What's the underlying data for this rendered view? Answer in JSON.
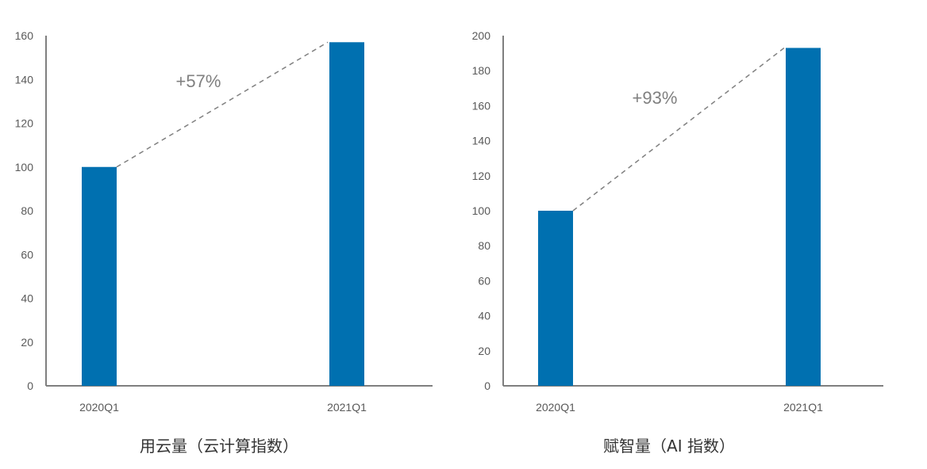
{
  "colors": {
    "bar": "#0070B0",
    "axis": "#7F7F7F",
    "tick_text": "#595959",
    "dash": "#808080"
  },
  "chart_data": [
    {
      "type": "bar",
      "title": "用云量（云计算指数）",
      "categories": [
        "2020Q1",
        "2021Q1"
      ],
      "values": [
        100,
        157
      ],
      "ylim": [
        0,
        160
      ],
      "yticks": [
        0,
        20,
        40,
        60,
        80,
        100,
        120,
        140,
        160
      ],
      "annotation": "+57%",
      "grid": false
    },
    {
      "type": "bar",
      "title": "赋智量（AI 指数）",
      "categories": [
        "2020Q1",
        "2021Q1"
      ],
      "values": [
        100,
        193
      ],
      "ylim": [
        0,
        200
      ],
      "yticks": [
        0,
        20,
        40,
        60,
        80,
        100,
        120,
        140,
        160,
        180,
        200
      ],
      "annotation": "+93%",
      "grid": false
    }
  ]
}
